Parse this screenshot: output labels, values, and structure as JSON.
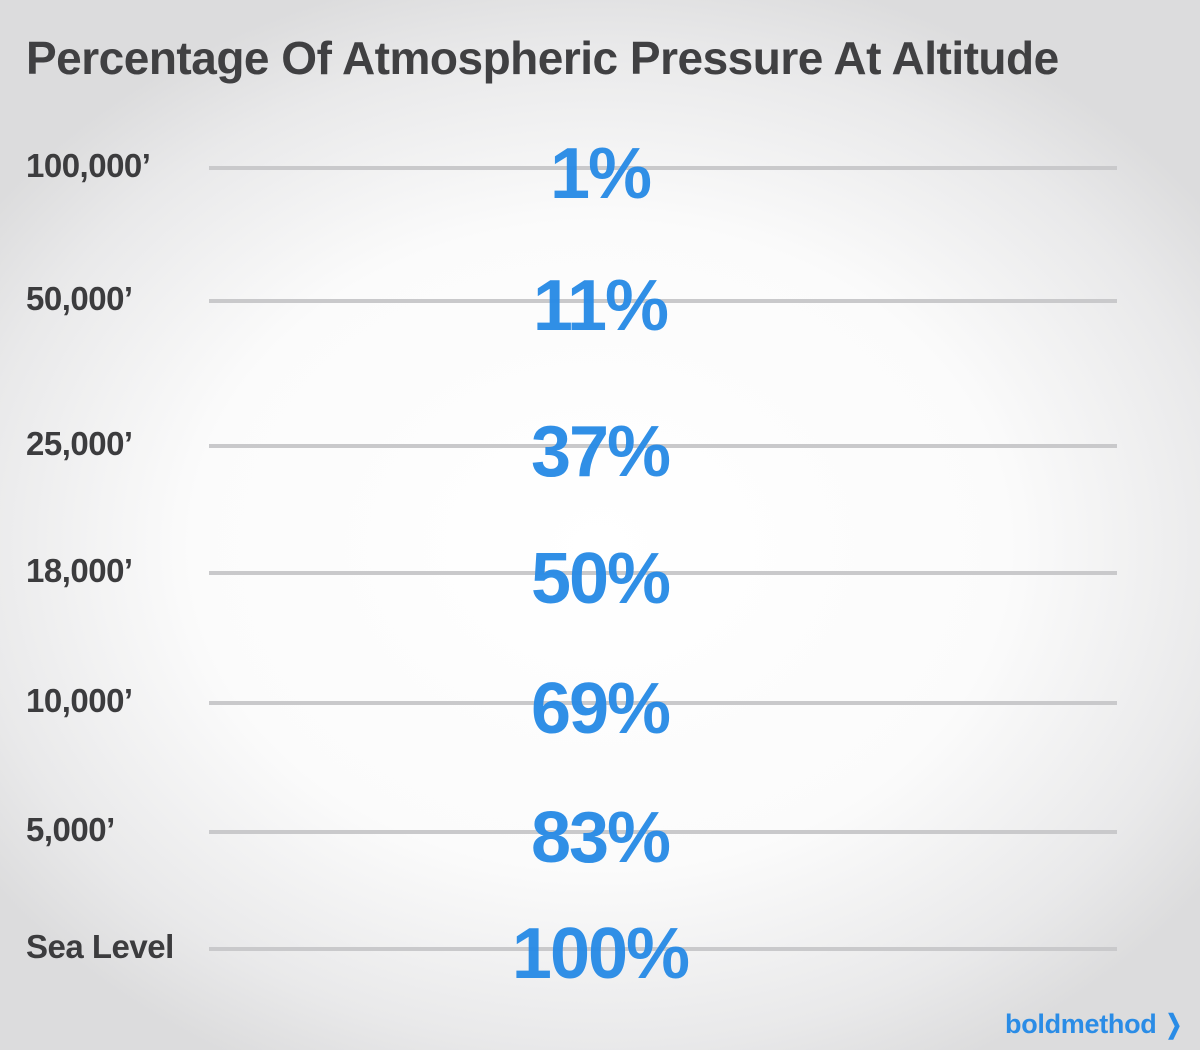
{
  "chart_data": {
    "type": "table",
    "title": "Percentage Of Atmospheric Pressure At Altitude",
    "rows": [
      {
        "altitude": "100,000’",
        "value": "1%"
      },
      {
        "altitude": "50,000’",
        "value": "11%"
      },
      {
        "altitude": "25,000’",
        "value": "37%"
      },
      {
        "altitude": "18,000’",
        "value": "50%"
      },
      {
        "altitude": "10,000’",
        "value": "69%"
      },
      {
        "altitude": "5,000’",
        "value": "83%"
      },
      {
        "altitude": "Sea Level",
        "value": "100%"
      }
    ],
    "colors": {
      "value": "#2a8ce6",
      "label": "#3c3c3e",
      "line": "#c9c9cb"
    }
  },
  "brand": {
    "name": "boldmethod",
    "chevron": "❯"
  }
}
